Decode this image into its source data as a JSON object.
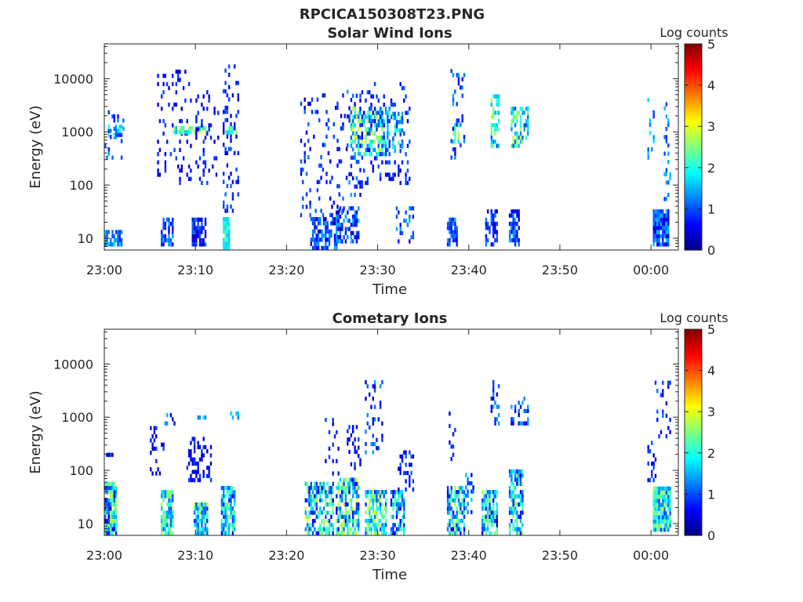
{
  "figure": {
    "suptitle": "RPCICA150308T23.PNG"
  },
  "colors": {
    "colormap": [
      "#00007f",
      "#0000ff",
      "#007fff",
      "#00ffff",
      "#7fff7f",
      "#ffff00",
      "#ff7f00",
      "#ff0000",
      "#7f0000"
    ],
    "background": "#ffffff",
    "axis": "#262626"
  },
  "chart_data": [
    {
      "type": "heatmap",
      "title": "Solar Wind Ions",
      "xlabel": "Time",
      "ylabel": "Energy (eV)",
      "yscale": "log",
      "ylim": [
        6,
        45000
      ],
      "xlim": [
        "23:00",
        "00:03"
      ],
      "x_ticks": [
        "23:00",
        "23:10",
        "23:20",
        "23:30",
        "23:40",
        "23:50",
        "00:00"
      ],
      "x_tick_minutes": [
        0,
        10,
        20,
        30,
        40,
        50,
        60
      ],
      "y_ticks": [
        10,
        100,
        1000,
        10000
      ],
      "y_tick_labels": [
        "10",
        "100",
        "1000",
        "10000"
      ],
      "colorbar": {
        "label": "Log counts",
        "range": [
          0,
          5
        ],
        "ticks": [
          "0",
          "1",
          "2",
          "3",
          "4",
          "5"
        ]
      },
      "clusters": [
        {
          "t0": 0.0,
          "t1": 1.8,
          "e0": 7,
          "e1": 12,
          "density": 0.8,
          "level": [
            0.8,
            1.8
          ]
        },
        {
          "t0": 0.0,
          "t1": 2.0,
          "e0": 300,
          "e1": 3500,
          "density": 0.15,
          "level": [
            0.5,
            1.5
          ]
        },
        {
          "t0": 0.4,
          "t1": 1.8,
          "e0": 800,
          "e1": 1300,
          "density": 0.6,
          "level": [
            0.8,
            2.2
          ]
        },
        {
          "t0": 6.2,
          "t1": 7.6,
          "e0": 7,
          "e1": 22,
          "density": 0.7,
          "level": [
            0.5,
            1.5
          ]
        },
        {
          "t0": 5.8,
          "t1": 9.5,
          "e0": 100,
          "e1": 14000,
          "density": 0.12,
          "level": [
            0.3,
            1.0
          ]
        },
        {
          "t0": 7.6,
          "t1": 11.2,
          "e0": 900,
          "e1": 1250,
          "density": 0.7,
          "level": [
            1.5,
            3.0
          ]
        },
        {
          "t0": 9.6,
          "t1": 11.0,
          "e0": 7,
          "e1": 22,
          "density": 0.8,
          "level": [
            0.2,
            1.2
          ]
        },
        {
          "t0": 10.0,
          "t1": 12.5,
          "e0": 100,
          "e1": 6000,
          "density": 0.15,
          "level": [
            0.3,
            1.0
          ]
        },
        {
          "t0": 13.0,
          "t1": 13.6,
          "e0": 6,
          "e1": 22,
          "density": 0.9,
          "level": [
            1.5,
            2.3
          ]
        },
        {
          "t0": 13.0,
          "t1": 14.6,
          "e0": 30,
          "e1": 16000,
          "density": 0.18,
          "level": [
            0.3,
            1.2
          ]
        },
        {
          "t0": 13.2,
          "t1": 14.4,
          "e0": 900,
          "e1": 1250,
          "density": 0.7,
          "level": [
            1.5,
            2.8
          ]
        },
        {
          "t0": 22.6,
          "t1": 25.4,
          "e0": 6,
          "e1": 22,
          "density": 0.6,
          "level": [
            0.3,
            1.5
          ]
        },
        {
          "t0": 21.5,
          "t1": 26.6,
          "e0": 25,
          "e1": 5000,
          "density": 0.12,
          "level": [
            0.3,
            1.2
          ]
        },
        {
          "t0": 25.4,
          "t1": 27.8,
          "e0": 8,
          "e1": 35,
          "density": 0.5,
          "level": [
            0.3,
            1.6
          ]
        },
        {
          "t0": 26.6,
          "t1": 28.2,
          "e0": 60,
          "e1": 6000,
          "density": 0.2,
          "level": [
            0.3,
            1.5
          ]
        },
        {
          "t0": 27.0,
          "t1": 31.2,
          "e0": 350,
          "e1": 2500,
          "density": 0.5,
          "level": [
            1.0,
            3.0
          ]
        },
        {
          "t0": 28.0,
          "t1": 33.5,
          "e0": 100,
          "e1": 8000,
          "density": 0.15,
          "level": [
            0.3,
            1.2
          ]
        },
        {
          "t0": 31.6,
          "t1": 32.8,
          "e0": 400,
          "e1": 2300,
          "density": 0.5,
          "level": [
            0.8,
            2.3
          ]
        },
        {
          "t0": 32.0,
          "t1": 34.0,
          "e0": 8,
          "e1": 35,
          "density": 0.3,
          "level": [
            0.5,
            1.5
          ]
        },
        {
          "t0": 37.6,
          "t1": 38.8,
          "e0": 7,
          "e1": 22,
          "density": 0.7,
          "level": [
            0.5,
            1.5
          ]
        },
        {
          "t0": 38.0,
          "t1": 39.6,
          "e0": 300,
          "e1": 13000,
          "density": 0.15,
          "level": [
            0.3,
            1.5
          ]
        },
        {
          "t0": 38.2,
          "t1": 39.0,
          "e0": 600,
          "e1": 1400,
          "density": 0.5,
          "level": [
            1.5,
            2.8
          ]
        },
        {
          "t0": 41.8,
          "t1": 43.2,
          "e0": 7,
          "e1": 30,
          "density": 0.6,
          "level": [
            0.3,
            1.3
          ]
        },
        {
          "t0": 42.4,
          "t1": 43.4,
          "e0": 500,
          "e1": 4500,
          "density": 0.5,
          "level": [
            1.0,
            2.8
          ]
        },
        {
          "t0": 44.4,
          "t1": 45.6,
          "e0": 7,
          "e1": 30,
          "density": 0.6,
          "level": [
            0.3,
            1.5
          ]
        },
        {
          "t0": 44.6,
          "t1": 46.6,
          "e0": 500,
          "e1": 2500,
          "density": 0.5,
          "level": [
            1.0,
            2.8
          ]
        },
        {
          "t0": 59.6,
          "t1": 60.4,
          "e0": 250,
          "e1": 4500,
          "density": 0.2,
          "level": [
            0.8,
            1.8
          ]
        },
        {
          "t0": 60.2,
          "t1": 62.0,
          "e0": 7,
          "e1": 30,
          "density": 0.95,
          "level": [
            0.3,
            1.6
          ]
        },
        {
          "t0": 61.4,
          "t1": 62.2,
          "e0": 50,
          "e1": 4500,
          "density": 0.15,
          "level": [
            0.8,
            1.6
          ]
        }
      ]
    },
    {
      "type": "heatmap",
      "title": "Cometary Ions",
      "xlabel": "Time",
      "ylabel": "Energy (eV)",
      "yscale": "log",
      "ylim": [
        6,
        45000
      ],
      "xlim": [
        "23:00",
        "00:03"
      ],
      "x_ticks": [
        "23:00",
        "23:10",
        "23:20",
        "23:30",
        "23:40",
        "23:50",
        "00:00"
      ],
      "x_tick_minutes": [
        0,
        10,
        20,
        30,
        40,
        50,
        60
      ],
      "y_ticks": [
        10,
        100,
        1000,
        10000
      ],
      "y_tick_labels": [
        "10",
        "100",
        "1000",
        "10000"
      ],
      "colorbar": {
        "label": "Log counts",
        "range": [
          0,
          5
        ],
        "ticks": [
          "0",
          "1",
          "2",
          "3",
          "4",
          "5"
        ]
      },
      "clusters": [
        {
          "t0": 0.0,
          "t1": 1.4,
          "e0": 6,
          "e1": 60,
          "density": 0.9,
          "level": [
            0.5,
            2.8
          ]
        },
        {
          "t0": 0.2,
          "t1": 1.0,
          "e0": 150,
          "e1": 200,
          "density": 0.4,
          "level": [
            0.3,
            1.0
          ]
        },
        {
          "t0": 5.0,
          "t1": 6.6,
          "e0": 80,
          "e1": 600,
          "density": 0.25,
          "level": [
            0.3,
            1.0
          ]
        },
        {
          "t0": 6.2,
          "t1": 7.6,
          "e0": 6,
          "e1": 40,
          "density": 0.8,
          "level": [
            1.0,
            2.8
          ]
        },
        {
          "t0": 6.6,
          "t1": 7.8,
          "e0": 700,
          "e1": 1100,
          "density": 0.3,
          "level": [
            0.3,
            1.6
          ]
        },
        {
          "t0": 9.0,
          "t1": 11.6,
          "e0": 60,
          "e1": 400,
          "density": 0.3,
          "level": [
            0.3,
            1.0
          ]
        },
        {
          "t0": 9.8,
          "t1": 11.2,
          "e0": 6,
          "e1": 25,
          "density": 0.8,
          "level": [
            0.8,
            2.8
          ]
        },
        {
          "t0": 10.2,
          "t1": 11.0,
          "e0": 900,
          "e1": 1200,
          "density": 0.5,
          "level": [
            1.0,
            2.0
          ]
        },
        {
          "t0": 12.8,
          "t1": 14.2,
          "e0": 6,
          "e1": 45,
          "density": 0.8,
          "level": [
            0.5,
            2.8
          ]
        },
        {
          "t0": 13.8,
          "t1": 14.6,
          "e0": 900,
          "e1": 1200,
          "density": 0.5,
          "level": [
            1.2,
            2.0
          ]
        },
        {
          "t0": 22.0,
          "t1": 25.0,
          "e0": 6,
          "e1": 60,
          "density": 0.6,
          "level": [
            0.5,
            3.0
          ]
        },
        {
          "t0": 24.0,
          "t1": 25.6,
          "e0": 80,
          "e1": 1200,
          "density": 0.15,
          "level": [
            0.3,
            1.0
          ]
        },
        {
          "t0": 25.4,
          "t1": 27.8,
          "e0": 6,
          "e1": 70,
          "density": 0.7,
          "level": [
            0.5,
            3.0
          ]
        },
        {
          "t0": 26.6,
          "t1": 28.0,
          "e0": 100,
          "e1": 700,
          "density": 0.2,
          "level": [
            0.3,
            1.0
          ]
        },
        {
          "t0": 28.6,
          "t1": 30.8,
          "e0": 6,
          "e1": 40,
          "density": 0.7,
          "level": [
            0.8,
            3.0
          ]
        },
        {
          "t0": 28.6,
          "t1": 30.4,
          "e0": 200,
          "e1": 4500,
          "density": 0.2,
          "level": [
            0.3,
            1.5
          ]
        },
        {
          "t0": 31.4,
          "t1": 33.0,
          "e0": 6,
          "e1": 40,
          "density": 0.6,
          "level": [
            0.5,
            2.5
          ]
        },
        {
          "t0": 32.0,
          "t1": 34.0,
          "e0": 40,
          "e1": 200,
          "density": 0.3,
          "level": [
            0.3,
            1.2
          ]
        },
        {
          "t0": 37.6,
          "t1": 39.6,
          "e0": 6,
          "e1": 45,
          "density": 0.7,
          "level": [
            0.5,
            2.8
          ]
        },
        {
          "t0": 37.8,
          "t1": 38.6,
          "e0": 150,
          "e1": 1100,
          "density": 0.2,
          "level": [
            0.3,
            1.0
          ]
        },
        {
          "t0": 39.6,
          "t1": 40.6,
          "e0": 15,
          "e1": 80,
          "density": 0.3,
          "level": [
            0.5,
            1.8
          ]
        },
        {
          "t0": 41.4,
          "t1": 43.2,
          "e0": 6,
          "e1": 40,
          "density": 0.7,
          "level": [
            0.5,
            2.8
          ]
        },
        {
          "t0": 42.4,
          "t1": 43.4,
          "e0": 700,
          "e1": 4500,
          "density": 0.25,
          "level": [
            0.3,
            1.5
          ]
        },
        {
          "t0": 44.4,
          "t1": 46.0,
          "e0": 6,
          "e1": 100,
          "density": 0.7,
          "level": [
            0.5,
            2.8
          ]
        },
        {
          "t0": 44.6,
          "t1": 46.6,
          "e0": 700,
          "e1": 2500,
          "density": 0.3,
          "level": [
            0.3,
            1.5
          ]
        },
        {
          "t0": 59.6,
          "t1": 60.6,
          "e0": 60,
          "e1": 300,
          "density": 0.2,
          "level": [
            0.3,
            1.2
          ]
        },
        {
          "t0": 60.2,
          "t1": 62.2,
          "e0": 7,
          "e1": 45,
          "density": 0.95,
          "level": [
            0.8,
            2.8
          ]
        },
        {
          "t0": 60.4,
          "t1": 62.2,
          "e0": 400,
          "e1": 4500,
          "density": 0.15,
          "level": [
            0.3,
            1.2
          ]
        }
      ]
    }
  ]
}
